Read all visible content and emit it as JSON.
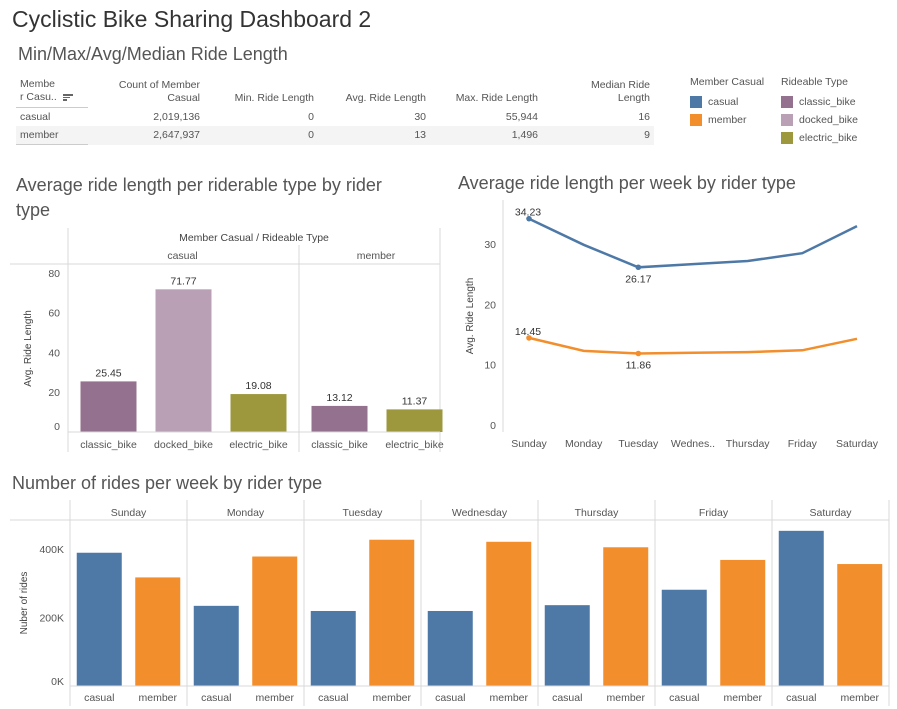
{
  "dashboard_title": "Cyclistic Bike Sharing Dashboard 2",
  "stats_table": {
    "title": "Min/Max/Avg/Median Ride Length",
    "headers": [
      "Membe r Casu..",
      "Count of Member Casual",
      "Min. Ride Length",
      "Avg. Ride Length",
      "Max. Ride Length",
      "Median Ride Length"
    ],
    "header_parts": {
      "member_line1": "Membe",
      "member_line2": "r Casu..",
      "count_line1": "Count of Member",
      "count_line2": "Casual",
      "min": "Min. Ride Length",
      "avg": "Avg. Ride Length",
      "max": "Max. Ride Length",
      "median_line1": "Median Ride",
      "median_line2": "Length"
    },
    "rows": [
      {
        "member_casual": "casual",
        "count": "2,019,136",
        "min": "0",
        "avg": "30",
        "max": "55,944",
        "median": "16"
      },
      {
        "member_casual": "member",
        "count": "2,647,937",
        "min": "0",
        "avg": "13",
        "max": "1,496",
        "median": "9"
      }
    ]
  },
  "legends": {
    "member_casual": {
      "title": "Member Casual",
      "items": [
        {
          "label": "casual",
          "color": "#4e79a7"
        },
        {
          "label": "member",
          "color": "#f28e2b"
        }
      ]
    },
    "rideable_type": {
      "title": "Rideable Type",
      "items": [
        {
          "label": "classic_bike",
          "color": "#94728f"
        },
        {
          "label": "docked_bike",
          "color": "#b9a0b4"
        },
        {
          "label": "electric_bike",
          "color": "#9d983d"
        }
      ]
    }
  },
  "chart_data": [
    {
      "type": "bar",
      "title_line1": "Average ride length per riderable type by rider",
      "title_line2": "type",
      "header": "Member Casual / Rideable Type",
      "ylabel": "Avg. Ride Length",
      "ylim": [
        0,
        84
      ],
      "yticks": [
        "0",
        "20",
        "40",
        "60",
        "80"
      ],
      "groups": [
        {
          "name": "casual",
          "bars": [
            {
              "category": "classic_bike",
              "value": 25.45,
              "label": "25.45",
              "color": "#94728f"
            },
            {
              "category": "docked_bike",
              "value": 71.77,
              "label": "71.77",
              "color": "#b9a0b4"
            },
            {
              "category": "electric_bike",
              "value": 19.08,
              "label": "19.08",
              "color": "#9d983d"
            }
          ]
        },
        {
          "name": "member",
          "bars": [
            {
              "category": "classic_bike",
              "value": 13.12,
              "label": "13.12",
              "color": "#94728f"
            },
            {
              "category": "electric_bike",
              "value": 11.37,
              "label": "11.37",
              "color": "#9d983d"
            }
          ]
        }
      ]
    },
    {
      "type": "line",
      "title": "Average ride length per week by rider type",
      "ylabel": "Avg. Ride Length",
      "ylim": [
        0,
        36
      ],
      "yticks": [
        "0",
        "10",
        "20",
        "30"
      ],
      "categories": [
        "Sunday",
        "Monday",
        "Tuesday",
        "Wednes..",
        "Thursday",
        "Friday",
        "Saturday"
      ],
      "series": [
        {
          "name": "casual",
          "color": "#4e79a7",
          "values": [
            34.23,
            29.9,
            26.17,
            26.7,
            27.2,
            28.5,
            33.0
          ]
        },
        {
          "name": "member",
          "color": "#f28e2b",
          "values": [
            14.45,
            12.3,
            11.86,
            12.0,
            12.1,
            12.4,
            14.3
          ]
        }
      ],
      "labels": [
        {
          "series": 0,
          "index": 0,
          "text": "34.23",
          "pos": "above"
        },
        {
          "series": 0,
          "index": 2,
          "text": "26.17",
          "pos": "below"
        },
        {
          "series": 1,
          "index": 0,
          "text": "14.45",
          "pos": "above"
        },
        {
          "series": 1,
          "index": 2,
          "text": "11.86",
          "pos": "below"
        }
      ]
    },
    {
      "type": "bar",
      "title": "Number of rides per week by rider type",
      "ylabel": "Nuber of rides",
      "ylim": [
        0,
        470000
      ],
      "yticks": [
        {
          "value": 0,
          "label": "0K"
        },
        {
          "value": 200000,
          "label": "200K"
        },
        {
          "value": 400000,
          "label": "400K"
        }
      ],
      "groups": [
        {
          "name": "Sunday",
          "values": [
            {
              "category": "casual",
              "value": 389000
            },
            {
              "category": "member",
              "value": 317000
            }
          ]
        },
        {
          "name": "Monday",
          "values": [
            {
              "category": "casual",
              "value": 234000
            },
            {
              "category": "member",
              "value": 378000
            }
          ]
        },
        {
          "name": "Tuesday",
          "values": [
            {
              "category": "casual",
              "value": 219000
            },
            {
              "category": "member",
              "value": 427000
            }
          ]
        },
        {
          "name": "Wednesday",
          "values": [
            {
              "category": "casual",
              "value": 219000
            },
            {
              "category": "member",
              "value": 421000
            }
          ]
        },
        {
          "name": "Thursday",
          "values": [
            {
              "category": "casual",
              "value": 236000
            },
            {
              "category": "member",
              "value": 405000
            }
          ]
        },
        {
          "name": "Friday",
          "values": [
            {
              "category": "casual",
              "value": 281000
            },
            {
              "category": "member",
              "value": 368000
            }
          ]
        },
        {
          "name": "Saturday",
          "values": [
            {
              "category": "casual",
              "value": 453000
            },
            {
              "category": "member",
              "value": 356000
            }
          ]
        }
      ],
      "colors": {
        "casual": "#4e79a7",
        "member": "#f28e2b"
      }
    }
  ]
}
